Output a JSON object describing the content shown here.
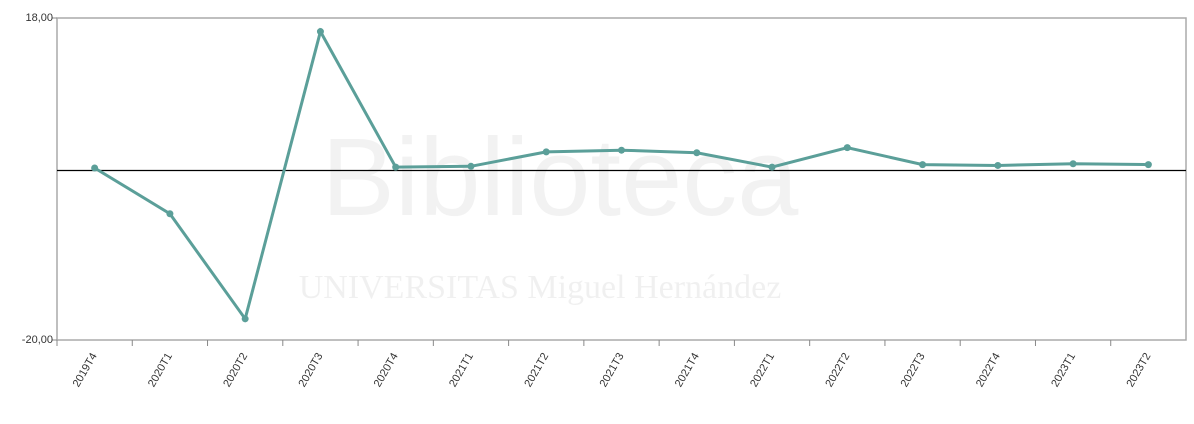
{
  "chart_data": {
    "type": "line",
    "categories": [
      "2019T4",
      "2020T1",
      "2020T2",
      "2020T3",
      "2020T4",
      "2021T1",
      "2021T2",
      "2021T3",
      "2021T4",
      "2022T1",
      "2022T2",
      "2022T3",
      "2022T4",
      "2023T1",
      "2023T2"
    ],
    "series": [
      {
        "color": "#5b9f99",
        "values": [
          0.3,
          -5.1,
          -17.5,
          16.4,
          0.4,
          0.5,
          2.2,
          2.4,
          2.1,
          0.4,
          2.7,
          0.7,
          0.6,
          0.8,
          0.7
        ]
      }
    ],
    "ylim": [
      -20,
      18
    ],
    "yticks": [
      {
        "value": -20,
        "label": "-20,00"
      },
      {
        "value": 18,
        "label": "18,00"
      }
    ],
    "reference_line": 0,
    "watermark": {
      "title": "Biblioteca",
      "subtitle": "UNIVERSITAS Miguel Hernández"
    }
  }
}
